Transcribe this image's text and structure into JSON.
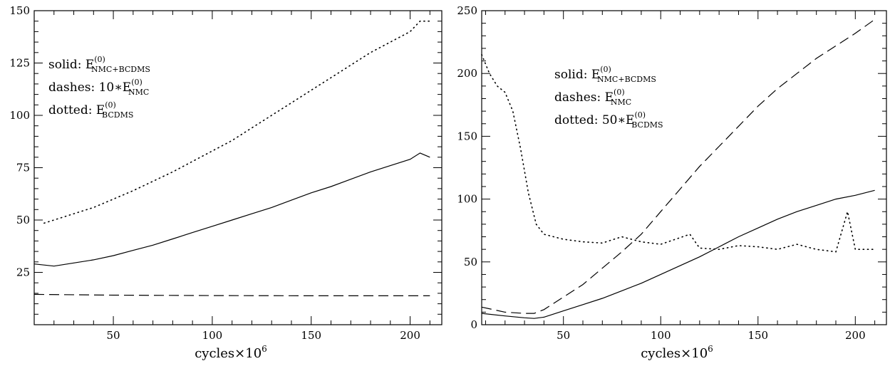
{
  "chart_data": [
    {
      "type": "line",
      "xlabel": "cycles×10",
      "xlabel_exp": "6",
      "xlim": [
        10,
        216
      ],
      "ylim": [
        0,
        150
      ],
      "xticks": [
        50,
        100,
        150,
        200
      ],
      "yticks": [
        25,
        50,
        75,
        100,
        125,
        150
      ],
      "grid": false,
      "legend": [
        {
          "prefix": "solid: ",
          "base": "E",
          "sup": "(0)",
          "sub": "NMC+BCDMS"
        },
        {
          "prefix": "dashes: 10∗",
          "base": "E",
          "sup": "(0)",
          "sub": "NMC"
        },
        {
          "prefix": "dotted: ",
          "base": "E",
          "sup": "(0)",
          "sub": "BCDMS"
        }
      ],
      "series": [
        {
          "style": "solid",
          "x": [
            10,
            20,
            30,
            40,
            50,
            60,
            70,
            80,
            90,
            100,
            110,
            120,
            130,
            140,
            150,
            160,
            170,
            180,
            190,
            200,
            205,
            210
          ],
          "y": [
            29,
            28,
            29.5,
            31,
            33,
            35.5,
            38,
            41,
            44,
            47,
            50,
            53,
            56,
            59.5,
            63,
            66,
            69.5,
            73,
            76,
            79,
            82,
            80
          ]
        },
        {
          "style": "dashed",
          "x": [
            10,
            50,
            100,
            150,
            210
          ],
          "y": [
            14.5,
            14.1,
            13.9,
            13.8,
            13.8
          ]
        },
        {
          "style": "dotted",
          "x": [
            15,
            20,
            30,
            40,
            50,
            60,
            70,
            80,
            90,
            100,
            110,
            120,
            130,
            140,
            150,
            160,
            170,
            180,
            190,
            200,
            205,
            210
          ],
          "y": [
            48.5,
            50,
            53,
            56,
            60,
            64,
            68.5,
            73,
            78,
            83,
            88,
            94,
            100,
            106,
            112,
            118,
            124,
            130,
            135,
            140,
            145,
            145
          ]
        }
      ]
    },
    {
      "type": "line",
      "xlabel": "cycles×10",
      "xlabel_exp": "6",
      "xlim": [
        8,
        216
      ],
      "ylim": [
        0,
        250
      ],
      "xticks": [
        50,
        100,
        150,
        200
      ],
      "yticks": [
        0,
        50,
        100,
        150,
        200,
        250
      ],
      "grid": false,
      "legend": [
        {
          "prefix": "solid: ",
          "base": "E",
          "sup": "(0)",
          "sub": "NMC+BCDMS"
        },
        {
          "prefix": "dashes: ",
          "base": "E",
          "sup": "(0)",
          "sub": "NMC"
        },
        {
          "prefix": "dotted: 50∗",
          "base": "E",
          "sup": "(0)",
          "sub": "BCDMS"
        }
      ],
      "series": [
        {
          "style": "solid",
          "x": [
            8,
            20,
            30,
            35,
            40,
            50,
            60,
            70,
            80,
            90,
            100,
            110,
            120,
            130,
            140,
            150,
            160,
            170,
            180,
            190,
            200,
            210
          ],
          "y": [
            9,
            7,
            5.5,
            5,
            6,
            11,
            16,
            21,
            27,
            33,
            40,
            47,
            54,
            62,
            70,
            77,
            84,
            90,
            95,
            100,
            103,
            107
          ]
        },
        {
          "style": "dashed",
          "x": [
            8,
            20,
            30,
            35,
            40,
            50,
            60,
            70,
            80,
            90,
            100,
            110,
            120,
            130,
            140,
            150,
            160,
            170,
            180,
            190,
            200,
            210
          ],
          "y": [
            14,
            10,
            9,
            9,
            12,
            22,
            32,
            45,
            58,
            72,
            90,
            108,
            126,
            142,
            158,
            174,
            188,
            200,
            212,
            222,
            232,
            243
          ]
        },
        {
          "style": "dotted",
          "x": [
            8,
            12,
            16,
            20,
            24,
            28,
            32,
            36,
            40,
            45,
            50,
            60,
            70,
            80,
            90,
            100,
            115,
            120,
            130,
            140,
            150,
            160,
            170,
            180,
            190,
            196,
            200,
            210
          ],
          "y": [
            215,
            200,
            190,
            185,
            170,
            140,
            105,
            80,
            72,
            70,
            68,
            66,
            65,
            70,
            66,
            64,
            72,
            61,
            60,
            63,
            62,
            60,
            64,
            60,
            58,
            90,
            60,
            60
          ]
        }
      ]
    }
  ]
}
